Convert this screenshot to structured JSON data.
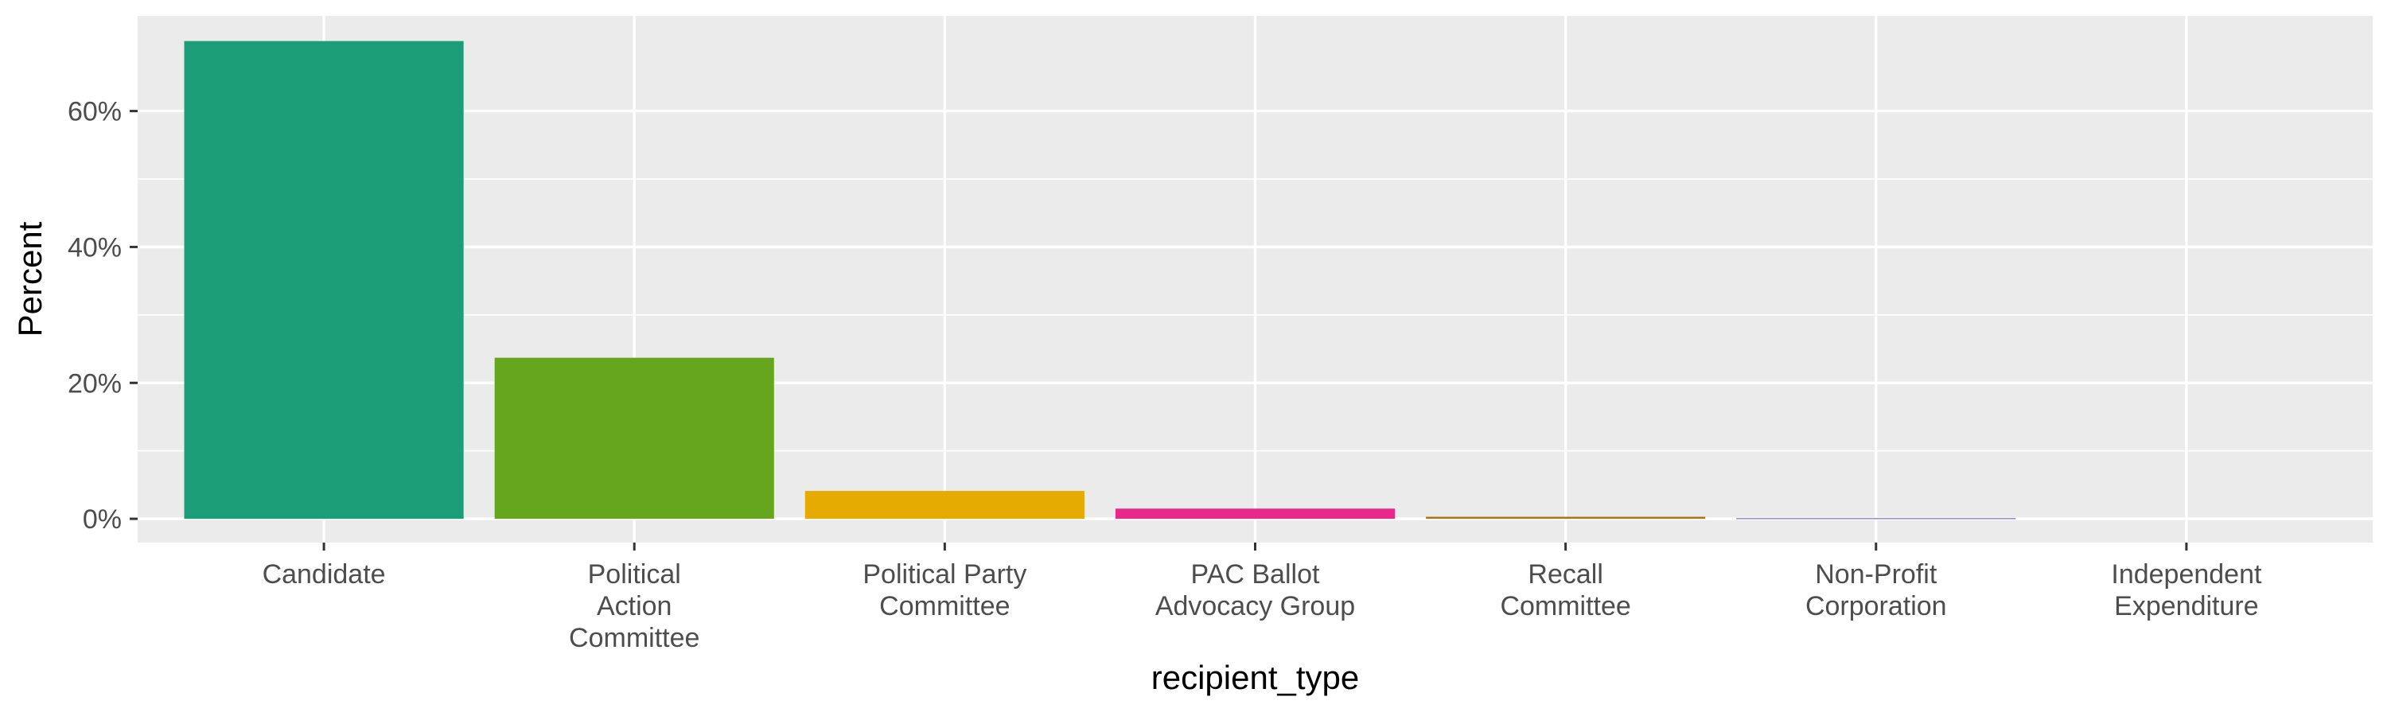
{
  "chart_data": {
    "type": "bar",
    "title": "",
    "xlabel": "recipient_type",
    "ylabel": "Percent",
    "categories": [
      [
        "Candidate"
      ],
      [
        "Political",
        "Action",
        "Committee"
      ],
      [
        "Political Party",
        "Committee"
      ],
      [
        "PAC Ballot",
        "Advocacy Group"
      ],
      [
        "Recall",
        "Committee"
      ],
      [
        "Non-Profit",
        "Corporation"
      ],
      [
        "Independent",
        "Expenditure"
      ]
    ],
    "values": [
      70.3,
      23.7,
      4.1,
      1.5,
      0.3,
      0.1,
      0.0
    ],
    "colors": [
      "#1b9e77",
      "#66a61e",
      "#e6ab02",
      "#e7298a",
      "#a6761d",
      "#7570b3",
      "#666666"
    ],
    "ylim": [
      -3.5,
      74
    ],
    "yticks": [
      0,
      20,
      40,
      60
    ],
    "ytick_labels": [
      "0%",
      "20%",
      "40%",
      "60%"
    ],
    "grid": true,
    "legend": "none",
    "panel_background": "#ebebeb",
    "grid_color": "#ffffff"
  }
}
